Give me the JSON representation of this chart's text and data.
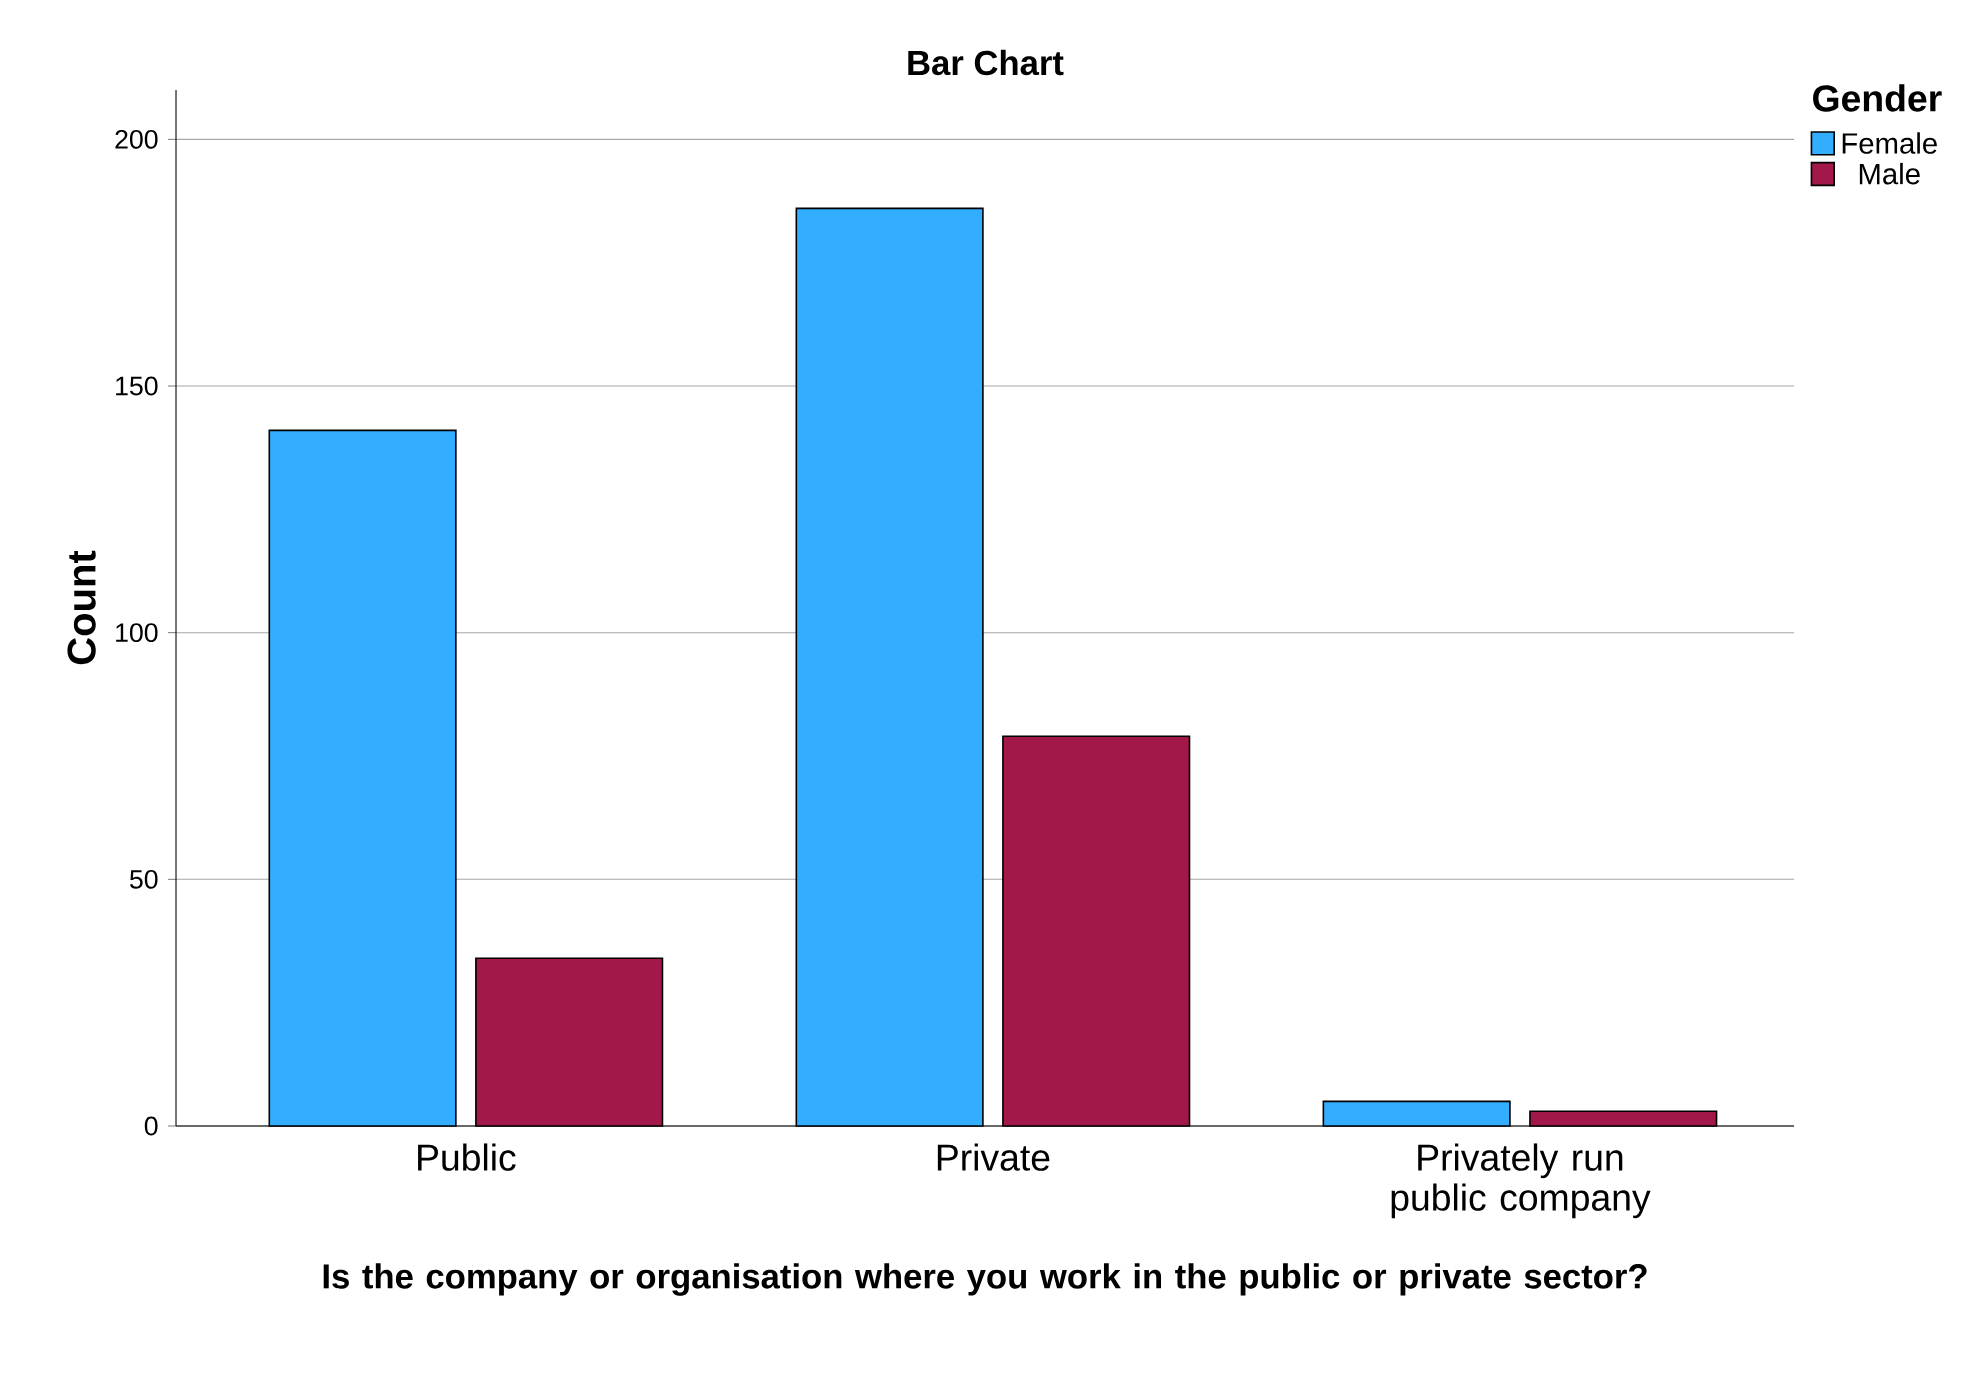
{
  "chart_data": {
    "type": "bar",
    "title": "Bar Chart",
    "xlabel": "Is the company or organisation where you work in the public or private sector?",
    "ylabel": "Count",
    "legend_title": "Gender",
    "categories": [
      "Public",
      "Private",
      "Privately run public company"
    ],
    "series": [
      {
        "name": "Female",
        "color": "#33adff",
        "values": [
          141,
          186,
          5
        ]
      },
      {
        "name": "Male",
        "color": "#a3184b",
        "values": [
          34,
          79,
          3
        ]
      }
    ],
    "ylim": [
      0,
      210
    ],
    "yticks": [
      0,
      50,
      100,
      150,
      200
    ],
    "grid": "y",
    "legend": "top right"
  }
}
